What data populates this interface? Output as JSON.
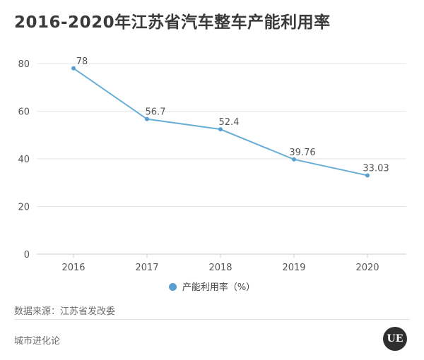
{
  "title": "2016-2020年江苏省汽车整车产能利用率",
  "source": "数据来源：江苏省发改委",
  "footer": "城市进化论",
  "logo_text": "UE",
  "colors": {
    "line": "#6aaed6",
    "point": "#5a9fd0",
    "grid": "#e6e6e6",
    "axis": "#cccccc"
  },
  "chart_data": {
    "type": "line",
    "title": "2016-2020年江苏省汽车整车产能利用率",
    "categories": [
      "2016",
      "2017",
      "2018",
      "2019",
      "2020"
    ],
    "series": [
      {
        "name": "产能利用率（%）",
        "values": [
          78,
          56.7,
          52.4,
          39.76,
          33.03
        ],
        "labels": [
          "78",
          "56.7",
          "52.4",
          "39.76",
          "33.03"
        ]
      }
    ],
    "ylim": [
      0,
      80
    ],
    "yticks": [
      0,
      20,
      40,
      60,
      80
    ],
    "grid": true,
    "legend": "bottom"
  }
}
